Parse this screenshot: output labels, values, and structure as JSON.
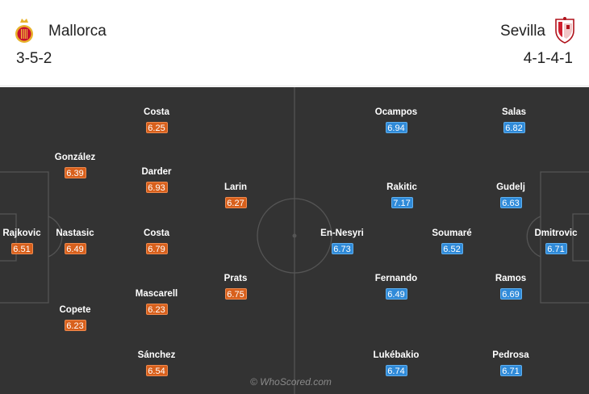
{
  "home": {
    "name": "Mallorca",
    "formation": "3-5-2",
    "color": "#d8601c",
    "crest_icon": "mallorca-crest-icon",
    "players": [
      {
        "name": "Rajkovic",
        "rating": "6.51"
      },
      {
        "name": "González",
        "rating": "6.39"
      },
      {
        "name": "Nastasic",
        "rating": "6.49"
      },
      {
        "name": "Copete",
        "rating": "6.23"
      },
      {
        "name": "Costa",
        "rating": "6.25"
      },
      {
        "name": "Darder",
        "rating": "6.93"
      },
      {
        "name": "Costa",
        "rating": "6.79"
      },
      {
        "name": "Mascarell",
        "rating": "6.23"
      },
      {
        "name": "Sánchez",
        "rating": "6.54"
      },
      {
        "name": "Larin",
        "rating": "6.27"
      },
      {
        "name": "Prats",
        "rating": "6.75"
      }
    ]
  },
  "away": {
    "name": "Sevilla",
    "formation": "4-1-4-1",
    "color": "#2f8ad8",
    "crest_icon": "sevilla-crest-icon",
    "players": [
      {
        "name": "Ocampos",
        "rating": "6.94"
      },
      {
        "name": "Rakitic",
        "rating": "7.17"
      },
      {
        "name": "En-Nesyri",
        "rating": "6.73"
      },
      {
        "name": "Fernando",
        "rating": "6.49"
      },
      {
        "name": "Lukébakio",
        "rating": "6.74"
      },
      {
        "name": "Soumaré",
        "rating": "6.52"
      },
      {
        "name": "Salas",
        "rating": "6.82"
      },
      {
        "name": "Gudelj",
        "rating": "6.63"
      },
      {
        "name": "Ramos",
        "rating": "6.69"
      },
      {
        "name": "Pedrosa",
        "rating": "6.71"
      },
      {
        "name": "Dmitrovic",
        "rating": "6.71"
      }
    ]
  },
  "watermark": "© WhoScored.com"
}
